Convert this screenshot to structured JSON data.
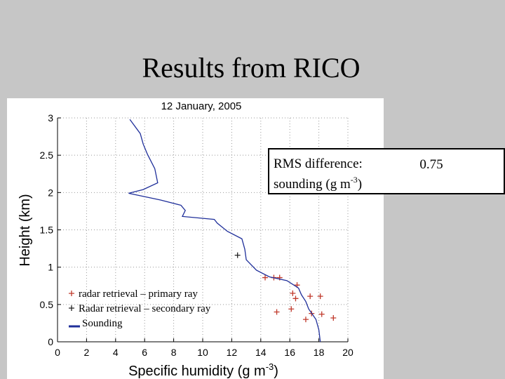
{
  "slide_title": "Results from RICO",
  "rms_box": {
    "line1": "RMS difference:",
    "line2_text": "sounding (g m",
    "line2_sup": "-3",
    "line2_end": ")",
    "value": 0.75
  },
  "chart_data": {
    "type": "line",
    "title": "12 January, 2005",
    "y_label": "Height (km)",
    "x_label": {
      "text": "Specific humidity (g m",
      "sup": "-3",
      "end": ")"
    },
    "xlim": [
      0,
      20
    ],
    "xticks": [
      0,
      2,
      4,
      6,
      8,
      10,
      12,
      14,
      16,
      18,
      20
    ],
    "ylim": [
      0,
      3
    ],
    "yticks": [
      0,
      0.5,
      1,
      1.5,
      2,
      2.5,
      3
    ],
    "grid": true,
    "series": [
      {
        "name": "radar retrieval – primary ray",
        "type": "scatter",
        "color": "#c0392b",
        "x": [
          14.3,
          14.9,
          15.3,
          16.5,
          16.2,
          17.4,
          18.1,
          16.4,
          15.1,
          16.1,
          17.5,
          18.2,
          17.1,
          19.0
        ],
        "values": [
          0.86,
          0.86,
          0.86,
          0.76,
          0.65,
          0.61,
          0.61,
          0.58,
          0.4,
          0.44,
          0.38,
          0.37,
          0.3,
          0.32
        ]
      },
      {
        "name": "Radar retrieval – secondary ray",
        "type": "scatter",
        "color": "#222222",
        "x": [
          12.4
        ],
        "values": [
          1.16
        ]
      },
      {
        "name": "Sounding",
        "type": "line",
        "color": "#1f2f9a",
        "x": [
          4.98,
          5.7,
          5.9,
          6.2,
          6.7,
          6.9,
          5.9,
          4.9,
          7.1,
          8.5,
          8.8,
          8.6,
          10.8,
          11.0,
          11.7,
          12.7,
          12.9,
          13.0,
          13.7,
          14.6,
          15.8,
          16.6,
          16.8,
          17.1,
          17.3,
          17.8,
          18.0,
          18.1
        ],
        "values": [
          2.98,
          2.79,
          2.65,
          2.51,
          2.32,
          2.13,
          2.04,
          1.99,
          1.9,
          1.83,
          1.76,
          1.68,
          1.64,
          1.59,
          1.48,
          1.38,
          1.24,
          1.1,
          0.96,
          0.87,
          0.82,
          0.72,
          0.63,
          0.54,
          0.44,
          0.3,
          0.16,
          0
        ]
      }
    ]
  }
}
